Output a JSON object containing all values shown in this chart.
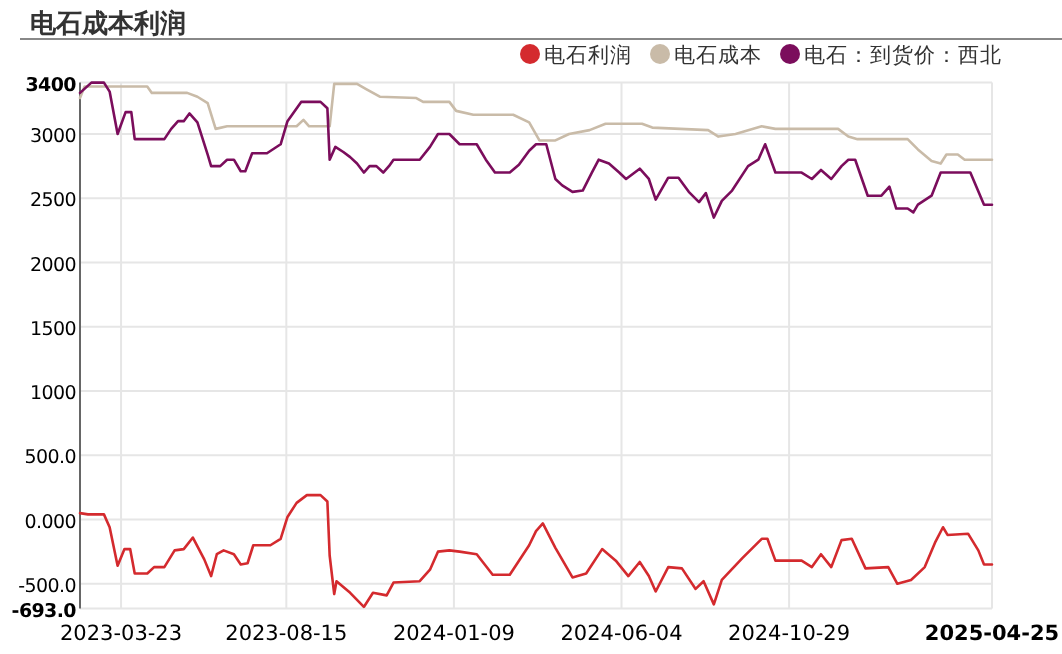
{
  "chart_data": {
    "type": "line",
    "title": "电石成本利润",
    "xlim": [
      "2023-02-15",
      "2025-04-25"
    ],
    "xticks": [
      "2023-03-23",
      "2023-08-15",
      "2024-01-09",
      "2024-06-04",
      "2024-10-29",
      "2025-04-25"
    ],
    "ylim": [
      -693,
      3400
    ],
    "yticks": [
      3400,
      3000,
      2500,
      2000,
      1500,
      1000,
      {
        "value": 500,
        "label": "500.0"
      },
      {
        "value": 0,
        "label": "0.000"
      },
      {
        "value": -500,
        "label": "-500.0"
      },
      {
        "value": -693,
        "label": "-693.0"
      }
    ],
    "grid": true,
    "legend": "top right",
    "series": [
      {
        "name": "电石利润",
        "color": "#d42a2e",
        "x": [
          "2023-02-15",
          "2023-02-22",
          "2023-02-28",
          "2023-03-08",
          "2023-03-13",
          "2023-03-20",
          "2023-03-26",
          "2023-03-31",
          "2023-04-04",
          "2023-04-15",
          "2023-04-21",
          "2023-04-30",
          "2023-05-09",
          "2023-05-17",
          "2023-05-25",
          "2023-06-04",
          "2023-06-10",
          "2023-06-15",
          "2023-06-21",
          "2023-06-30",
          "2023-07-06",
          "2023-07-12",
          "2023-07-17",
          "2023-08-01",
          "2023-08-10",
          "2023-08-16",
          "2023-08-24",
          "2023-09-02",
          "2023-09-14",
          "2023-09-20",
          "2023-09-22",
          "2023-09-26",
          "2023-09-28",
          "2023-10-10",
          "2023-10-22",
          "2023-10-30",
          "2023-11-11",
          "2023-11-17",
          "2023-12-10",
          "2023-12-19",
          "2023-12-26",
          "2024-01-05",
          "2024-01-14",
          "2024-01-29",
          "2024-02-12",
          "2024-02-27",
          "2024-03-15",
          "2024-03-21",
          "2024-03-27",
          "2024-04-07",
          "2024-04-22",
          "2024-05-04",
          "2024-05-18",
          "2024-05-30",
          "2024-06-10",
          "2024-06-20",
          "2024-06-28",
          "2024-07-04",
          "2024-07-15",
          "2024-07-27",
          "2024-08-08",
          "2024-08-15",
          "2024-08-24",
          "2024-08-31",
          "2024-09-18",
          "2024-10-05",
          "2024-10-10",
          "2024-10-17",
          "2024-11-09",
          "2024-11-18",
          "2024-11-26",
          "2024-12-05",
          "2024-12-14",
          "2024-12-23",
          "2025-01-04",
          "2025-01-24",
          "2025-02-01",
          "2025-02-13",
          "2025-02-25",
          "2025-03-06",
          "2025-03-13",
          "2025-03-17",
          "2025-04-04",
          "2025-04-13",
          "2025-04-18",
          "2025-04-25"
        ],
        "values": [
          50,
          40,
          40,
          40,
          -60,
          -360,
          -230,
          -230,
          -420,
          -420,
          -370,
          -370,
          -240,
          -230,
          -140,
          -310,
          -440,
          -270,
          -240,
          -270,
          -350,
          -340,
          -200,
          -200,
          -150,
          20,
          130,
          190,
          190,
          140,
          -280,
          -580,
          -480,
          -570,
          -680,
          -570,
          -590,
          -490,
          -480,
          -390,
          -250,
          -240,
          -250,
          -270,
          -430,
          -430,
          -200,
          -90,
          -30,
          -220,
          -450,
          -420,
          -230,
          -320,
          -440,
          -330,
          -440,
          -560,
          -370,
          -380,
          -540,
          -480,
          -660,
          -470,
          -300,
          -150,
          -150,
          -320,
          -320,
          -370,
          -270,
          -370,
          -160,
          -150,
          -380,
          -370,
          -500,
          -470,
          -370,
          -180,
          -60,
          -120,
          -110,
          -240,
          -350,
          -350
        ]
      },
      {
        "name": "电石成本",
        "color": "#c9bba8",
        "x": [
          "2023-02-15",
          "2023-02-19",
          "2023-04-15",
          "2023-04-19",
          "2023-05-20",
          "2023-05-29",
          "2023-06-07",
          "2023-06-14",
          "2023-06-24",
          "2023-08-24",
          "2023-08-30",
          "2023-09-04",
          "2023-09-22",
          "2023-09-26",
          "2023-10-16",
          "2023-10-24",
          "2023-11-05",
          "2023-12-07",
          "2023-12-13",
          "2024-01-05",
          "2024-01-11",
          "2024-01-26",
          "2024-03-01",
          "2024-03-15",
          "2024-03-24",
          "2024-04-07",
          "2024-04-19",
          "2024-05-07",
          "2024-05-21",
          "2024-06-22",
          "2024-07-01",
          "2024-08-19",
          "2024-08-28",
          "2024-09-12",
          "2024-10-05",
          "2024-10-17",
          "2024-12-11",
          "2024-12-20",
          "2024-12-28",
          "2025-02-10",
          "2025-02-19",
          "2025-03-03",
          "2025-03-11",
          "2025-03-16",
          "2025-03-26",
          "2025-04-01",
          "2025-04-25"
        ],
        "values": [
          3280,
          3370,
          3370,
          3320,
          3320,
          3290,
          3240,
          3040,
          3060,
          3060,
          3110,
          3060,
          3060,
          3390,
          3390,
          3350,
          3290,
          3280,
          3250,
          3250,
          3180,
          3150,
          3150,
          3090,
          2950,
          2950,
          3000,
          3030,
          3080,
          3080,
          3050,
          3030,
          2980,
          3000,
          3060,
          3040,
          3040,
          2980,
          2960,
          2960,
          2880,
          2790,
          2770,
          2840,
          2840,
          2800,
          2800
        ]
      },
      {
        "name": "电石：到货价：西北",
        "color": "#7b0d5c",
        "x": [
          "2023-02-15",
          "2023-02-25",
          "2023-03-08",
          "2023-03-13",
          "2023-03-20",
          "2023-03-27",
          "2023-04-01",
          "2023-04-04",
          "2023-04-30",
          "2023-05-06",
          "2023-05-12",
          "2023-05-17",
          "2023-05-22",
          "2023-05-29",
          "2023-06-07",
          "2023-06-10",
          "2023-06-18",
          "2023-06-24",
          "2023-06-30",
          "2023-07-06",
          "2023-07-10",
          "2023-07-16",
          "2023-07-29",
          "2023-08-10",
          "2023-08-16",
          "2023-08-28",
          "2023-09-14",
          "2023-09-20",
          "2023-09-22",
          "2023-09-27",
          "2023-10-04",
          "2023-10-10",
          "2023-10-16",
          "2023-10-22",
          "2023-10-27",
          "2023-11-02",
          "2023-11-08",
          "2023-11-13",
          "2023-11-17",
          "2023-12-10",
          "2023-12-19",
          "2023-12-26",
          "2024-01-05",
          "2024-01-14",
          "2024-01-29",
          "2024-02-06",
          "2024-02-14",
          "2024-02-27",
          "2024-03-06",
          "2024-03-15",
          "2024-03-21",
          "2024-03-30",
          "2024-04-07",
          "2024-04-13",
          "2024-04-22",
          "2024-05-01",
          "2024-05-09",
          "2024-05-15",
          "2024-05-24",
          "2024-06-02",
          "2024-06-08",
          "2024-06-20",
          "2024-06-28",
          "2024-07-04",
          "2024-07-15",
          "2024-07-24",
          "2024-08-02",
          "2024-08-11",
          "2024-08-17",
          "2024-08-24",
          "2024-08-31",
          "2024-09-09",
          "2024-09-23",
          "2024-10-02",
          "2024-10-08",
          "2024-10-17",
          "2024-11-09",
          "2024-11-18",
          "2024-11-26",
          "2024-12-05",
          "2024-12-14",
          "2024-12-20",
          "2024-12-26",
          "2025-01-06",
          "2025-01-18",
          "2025-01-25",
          "2025-01-31",
          "2025-02-10",
          "2025-02-15",
          "2025-02-19",
          "2025-03-03",
          "2025-03-11",
          "2025-04-06",
          "2025-04-18",
          "2025-04-25"
        ],
        "values": [
          3320,
          3400,
          3400,
          3330,
          3000,
          3170,
          3170,
          2960,
          2960,
          3040,
          3100,
          3100,
          3160,
          3090,
          2840,
          2750,
          2750,
          2800,
          2800,
          2710,
          2710,
          2850,
          2850,
          2920,
          3100,
          3250,
          3250,
          3200,
          2800,
          2900,
          2860,
          2820,
          2770,
          2700,
          2750,
          2750,
          2700,
          2750,
          2800,
          2800,
          2900,
          3000,
          3000,
          2920,
          2920,
          2800,
          2700,
          2700,
          2760,
          2870,
          2920,
          2920,
          2650,
          2600,
          2550,
          2560,
          2700,
          2800,
          2770,
          2700,
          2650,
          2730,
          2650,
          2490,
          2660,
          2660,
          2550,
          2470,
          2540,
          2350,
          2480,
          2560,
          2750,
          2800,
          2920,
          2700,
          2700,
          2650,
          2720,
          2650,
          2750,
          2800,
          2800,
          2520,
          2520,
          2590,
          2420,
          2420,
          2390,
          2450,
          2520,
          2700,
          2700,
          2450,
          2450
        ]
      }
    ]
  }
}
